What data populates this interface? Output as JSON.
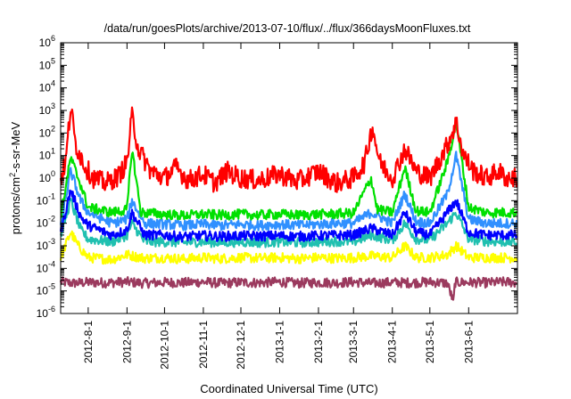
{
  "chart_data": {
    "type": "line",
    "title": "/data/run/goesPlots/archive/2013-07-10/flux/../flux/366daysMoonFluxes.txt",
    "xlabel": "Coordinated Universal Time (UTC)",
    "ylabel_base": "protons/cm",
    "ylabel_sup": "2",
    "ylabel_tail": "-s-sr-MeV",
    "y_scale": "log",
    "ylim": [
      1e-06,
      1000000.0
    ],
    "xlim": [
      "2012-07-10",
      "2013-07-10"
    ],
    "y_ticks": [
      {
        "value": 1e-06,
        "base": "10",
        "exp": "-6"
      },
      {
        "value": 1e-05,
        "base": "10",
        "exp": "-5"
      },
      {
        "value": 0.0001,
        "base": "10",
        "exp": "-4"
      },
      {
        "value": 0.001,
        "base": "10",
        "exp": "-3"
      },
      {
        "value": 0.01,
        "base": "10",
        "exp": "-2"
      },
      {
        "value": 0.1,
        "base": "10",
        "exp": "-1"
      },
      {
        "value": 1.0,
        "base": "10",
        "exp": "0"
      },
      {
        "value": 10.0,
        "base": "10",
        "exp": "1"
      },
      {
        "value": 100.0,
        "base": "10",
        "exp": "2"
      },
      {
        "value": 1000.0,
        "base": "10",
        "exp": "3"
      },
      {
        "value": 10000.0,
        "base": "10",
        "exp": "4"
      },
      {
        "value": 100000.0,
        "base": "10",
        "exp": "5"
      },
      {
        "value": 1000000.0,
        "base": "10",
        "exp": "6"
      }
    ],
    "x_ticks": [
      {
        "date": "2012-08-01",
        "label": "2012-8-1"
      },
      {
        "date": "2012-09-01",
        "label": "2012-9-1"
      },
      {
        "date": "2012-10-01",
        "label": "2012-10-1"
      },
      {
        "date": "2012-11-01",
        "label": "2012-11-1"
      },
      {
        "date": "2012-12-01",
        "label": "2012-12-1"
      },
      {
        "date": "2013-01-01",
        "label": "2013-1-1"
      },
      {
        "date": "2013-02-01",
        "label": "2013-2-1"
      },
      {
        "date": "2013-03-01",
        "label": "2013-3-1"
      },
      {
        "date": "2013-04-01",
        "label": "2013-4-1"
      },
      {
        "date": "2013-05-01",
        "label": "2013-5-1"
      },
      {
        "date": "2013-06-01",
        "label": "2013-6-1"
      }
    ],
    "grid": false,
    "series": [
      {
        "color": "#9b3a5e",
        "points": [
          [
            "2012-07-10",
            2.5e-05
          ],
          [
            "2012-07-20",
            2.2e-05
          ],
          [
            "2012-08-01",
            2.4e-05
          ],
          [
            "2012-08-15",
            2.3e-05
          ],
          [
            "2012-09-01",
            2.5e-05
          ],
          [
            "2012-09-15",
            2.2e-05
          ],
          [
            "2012-10-01",
            2.4e-05
          ],
          [
            "2012-10-15",
            2.3e-05
          ],
          [
            "2012-11-01",
            2.5e-05
          ],
          [
            "2012-11-15",
            2.2e-05
          ],
          [
            "2012-12-01",
            2.4e-05
          ],
          [
            "2012-12-15",
            2.3e-05
          ],
          [
            "2013-01-01",
            2.5e-05
          ],
          [
            "2013-01-15",
            2.2e-05
          ],
          [
            "2013-02-01",
            2.4e-05
          ],
          [
            "2013-02-15",
            2.3e-05
          ],
          [
            "2013-03-01",
            2.5e-05
          ],
          [
            "2013-03-15",
            2.2e-05
          ],
          [
            "2013-04-01",
            2.4e-05
          ],
          [
            "2013-04-15",
            2.3e-05
          ],
          [
            "2013-05-01",
            2.5e-05
          ],
          [
            "2013-05-15",
            2.2e-05
          ],
          [
            "2013-05-20",
            3e-06
          ],
          [
            "2013-05-21",
            2.4e-05
          ],
          [
            "2013-06-01",
            2.4e-05
          ],
          [
            "2013-06-15",
            2.3e-05
          ],
          [
            "2013-07-01",
            2.5e-05
          ],
          [
            "2013-07-10",
            2.3e-05
          ]
        ]
      },
      {
        "color": "#ffff00",
        "points": [
          [
            "2012-07-10",
            0.0003
          ],
          [
            "2012-07-18",
            0.004
          ],
          [
            "2012-07-24",
            0.001
          ],
          [
            "2012-08-01",
            0.0003
          ],
          [
            "2012-08-20",
            0.00025
          ],
          [
            "2012-09-01",
            0.0004
          ],
          [
            "2012-09-15",
            0.00028
          ],
          [
            "2012-10-01",
            0.0003
          ],
          [
            "2012-10-15",
            0.00026
          ],
          [
            "2012-11-01",
            0.0003
          ],
          [
            "2012-11-15",
            0.00027
          ],
          [
            "2012-12-01",
            0.0003
          ],
          [
            "2012-12-15",
            0.00028
          ],
          [
            "2013-01-01",
            0.0003
          ],
          [
            "2013-01-15",
            0.00027
          ],
          [
            "2013-02-01",
            0.0003
          ],
          [
            "2013-02-15",
            0.00028
          ],
          [
            "2013-03-01",
            0.0003
          ],
          [
            "2013-03-15",
            0.00035
          ],
          [
            "2013-04-01",
            0.0003
          ],
          [
            "2013-04-11",
            0.001
          ],
          [
            "2013-04-20",
            0.0003
          ],
          [
            "2013-05-01",
            0.0003
          ],
          [
            "2013-05-15",
            0.0004
          ],
          [
            "2013-05-22",
            0.001
          ],
          [
            "2013-06-01",
            0.0003
          ],
          [
            "2013-06-15",
            0.0003
          ],
          [
            "2013-07-01",
            0.0003
          ],
          [
            "2013-07-10",
            0.0003
          ]
        ]
      },
      {
        "color": "#20c0b0",
        "points": [
          [
            "2012-07-10",
            0.003
          ],
          [
            "2012-07-18",
            0.1
          ],
          [
            "2012-07-26",
            0.005
          ],
          [
            "2012-08-01",
            0.002
          ],
          [
            "2012-08-20",
            0.0015
          ],
          [
            "2012-09-01",
            0.003
          ],
          [
            "2012-09-05",
            0.01
          ],
          [
            "2012-09-15",
            0.0015
          ],
          [
            "2012-10-01",
            0.0015
          ],
          [
            "2012-10-15",
            0.0014
          ],
          [
            "2012-11-01",
            0.0015
          ],
          [
            "2012-11-15",
            0.0014
          ],
          [
            "2012-12-01",
            0.0015
          ],
          [
            "2012-12-15",
            0.0014
          ],
          [
            "2013-01-01",
            0.0015
          ],
          [
            "2013-01-15",
            0.0014
          ],
          [
            "2013-02-01",
            0.0015
          ],
          [
            "2013-02-15",
            0.0016
          ],
          [
            "2013-03-01",
            0.0015
          ],
          [
            "2013-03-15",
            0.003
          ],
          [
            "2013-04-01",
            0.0018
          ],
          [
            "2013-04-11",
            0.01
          ],
          [
            "2013-04-20",
            0.002
          ],
          [
            "2013-05-01",
            0.0018
          ],
          [
            "2013-05-15",
            0.01
          ],
          [
            "2013-05-22",
            0.03
          ],
          [
            "2013-06-01",
            0.002
          ],
          [
            "2013-06-15",
            0.0016
          ],
          [
            "2013-07-01",
            0.0015
          ],
          [
            "2013-07-10",
            0.0015
          ]
        ]
      },
      {
        "color": "#0000ff",
        "points": [
          [
            "2012-07-10",
            0.004
          ],
          [
            "2012-07-18",
            0.3
          ],
          [
            "2012-07-26",
            0.02
          ],
          [
            "2012-08-01",
            0.008
          ],
          [
            "2012-08-20",
            0.003
          ],
          [
            "2012-09-01",
            0.005
          ],
          [
            "2012-09-05",
            0.03
          ],
          [
            "2012-09-15",
            0.003
          ],
          [
            "2012-10-01",
            0.003
          ],
          [
            "2012-10-15",
            0.0025
          ],
          [
            "2012-11-01",
            0.0028
          ],
          [
            "2012-11-15",
            0.0026
          ],
          [
            "2012-12-01",
            0.0028
          ],
          [
            "2012-12-15",
            0.0027
          ],
          [
            "2013-01-01",
            0.0028
          ],
          [
            "2013-01-15",
            0.0026
          ],
          [
            "2013-02-01",
            0.0028
          ],
          [
            "2013-02-15",
            0.0029
          ],
          [
            "2013-03-01",
            0.003
          ],
          [
            "2013-03-15",
            0.006
          ],
          [
            "2013-04-01",
            0.003
          ],
          [
            "2013-04-11",
            0.03
          ],
          [
            "2013-04-20",
            0.004
          ],
          [
            "2013-05-01",
            0.003
          ],
          [
            "2013-05-15",
            0.03
          ],
          [
            "2013-05-22",
            0.1
          ],
          [
            "2013-06-01",
            0.004
          ],
          [
            "2013-06-15",
            0.003
          ],
          [
            "2013-07-01",
            0.003
          ],
          [
            "2013-07-10",
            0.003
          ]
        ]
      },
      {
        "color": "#3090ff",
        "points": [
          [
            "2012-07-10",
            0.008
          ],
          [
            "2012-07-18",
            2
          ],
          [
            "2012-07-26",
            0.1
          ],
          [
            "2012-08-01",
            0.03
          ],
          [
            "2012-08-20",
            0.01
          ],
          [
            "2012-09-01",
            0.015
          ],
          [
            "2012-09-05",
            0.1
          ],
          [
            "2012-09-15",
            0.01
          ],
          [
            "2012-10-01",
            0.009
          ],
          [
            "2012-10-15",
            0.008
          ],
          [
            "2012-11-01",
            0.009
          ],
          [
            "2012-11-15",
            0.008
          ],
          [
            "2012-12-01",
            0.009
          ],
          [
            "2012-12-15",
            0.008
          ],
          [
            "2013-01-01",
            0.009
          ],
          [
            "2013-01-15",
            0.008
          ],
          [
            "2013-02-01",
            0.009
          ],
          [
            "2013-02-15",
            0.01
          ],
          [
            "2013-03-01",
            0.01
          ],
          [
            "2013-03-15",
            0.03
          ],
          [
            "2013-04-01",
            0.01
          ],
          [
            "2013-04-11",
            0.2
          ],
          [
            "2013-04-20",
            0.012
          ],
          [
            "2013-05-01",
            0.01
          ],
          [
            "2013-05-15",
            0.2
          ],
          [
            "2013-05-22",
            10
          ],
          [
            "2013-06-01",
            0.015
          ],
          [
            "2013-06-15",
            0.01
          ],
          [
            "2013-07-01",
            0.01
          ],
          [
            "2013-07-10",
            0.01
          ]
        ]
      },
      {
        "color": "#00e000",
        "points": [
          [
            "2012-07-10",
            0.02
          ],
          [
            "2012-07-18",
            8
          ],
          [
            "2012-07-26",
            0.5
          ],
          [
            "2012-08-01",
            0.05
          ],
          [
            "2012-08-20",
            0.03
          ],
          [
            "2012-09-01",
            0.04
          ],
          [
            "2012-09-05",
            20
          ],
          [
            "2012-09-12",
            0.03
          ],
          [
            "2012-10-01",
            0.025
          ],
          [
            "2012-10-15",
            0.022
          ],
          [
            "2012-11-01",
            0.025
          ],
          [
            "2012-11-15",
            0.023
          ],
          [
            "2012-12-01",
            0.025
          ],
          [
            "2012-12-15",
            0.023
          ],
          [
            "2013-01-01",
            0.025
          ],
          [
            "2013-01-15",
            0.023
          ],
          [
            "2013-02-01",
            0.025
          ],
          [
            "2013-02-15",
            0.026
          ],
          [
            "2013-03-01",
            0.028
          ],
          [
            "2013-03-15",
            1
          ],
          [
            "2013-03-20",
            0.04
          ],
          [
            "2013-04-01",
            0.03
          ],
          [
            "2013-04-11",
            3
          ],
          [
            "2013-04-20",
            0.035
          ],
          [
            "2013-05-01",
            0.03
          ],
          [
            "2013-05-15",
            5
          ],
          [
            "2013-05-22",
            300
          ],
          [
            "2013-06-01",
            0.05
          ],
          [
            "2013-06-15",
            0.03
          ],
          [
            "2013-07-01",
            0.03
          ],
          [
            "2013-07-10",
            0.03
          ]
        ]
      },
      {
        "color": "#ff0000",
        "points": [
          [
            "2012-07-10",
            1
          ],
          [
            "2012-07-14",
            5
          ],
          [
            "2012-07-18",
            1500
          ],
          [
            "2012-07-22",
            30
          ],
          [
            "2012-07-30",
            3
          ],
          [
            "2012-08-05",
            1
          ],
          [
            "2012-08-15",
            0.6
          ],
          [
            "2012-08-25",
            1.2
          ],
          [
            "2012-09-01",
            5
          ],
          [
            "2012-09-05",
            600
          ],
          [
            "2012-09-10",
            20
          ],
          [
            "2012-09-20",
            2
          ],
          [
            "2012-10-01",
            1
          ],
          [
            "2012-10-10",
            3
          ],
          [
            "2012-10-20",
            0.8
          ],
          [
            "2012-11-01",
            1.5
          ],
          [
            "2012-11-10",
            0.6
          ],
          [
            "2012-11-20",
            2
          ],
          [
            "2012-12-01",
            1
          ],
          [
            "2012-12-15",
            0.8
          ],
          [
            "2013-01-01",
            1.5
          ],
          [
            "2013-01-15",
            0.7
          ],
          [
            "2013-02-01",
            2
          ],
          [
            "2013-02-15",
            0.6
          ],
          [
            "2013-03-01",
            1
          ],
          [
            "2013-03-10",
            5
          ],
          [
            "2013-03-16",
            200
          ],
          [
            "2013-03-22",
            5
          ],
          [
            "2013-04-01",
            1
          ],
          [
            "2013-04-11",
            20
          ],
          [
            "2013-04-20",
            2
          ],
          [
            "2013-05-01",
            1
          ],
          [
            "2013-05-15",
            30
          ],
          [
            "2013-05-22",
            300
          ],
          [
            "2013-05-28",
            10
          ],
          [
            "2013-06-05",
            2
          ],
          [
            "2013-06-15",
            1
          ],
          [
            "2013-06-25",
            2
          ],
          [
            "2013-07-01",
            1
          ],
          [
            "2013-07-10",
            1
          ]
        ]
      }
    ]
  }
}
